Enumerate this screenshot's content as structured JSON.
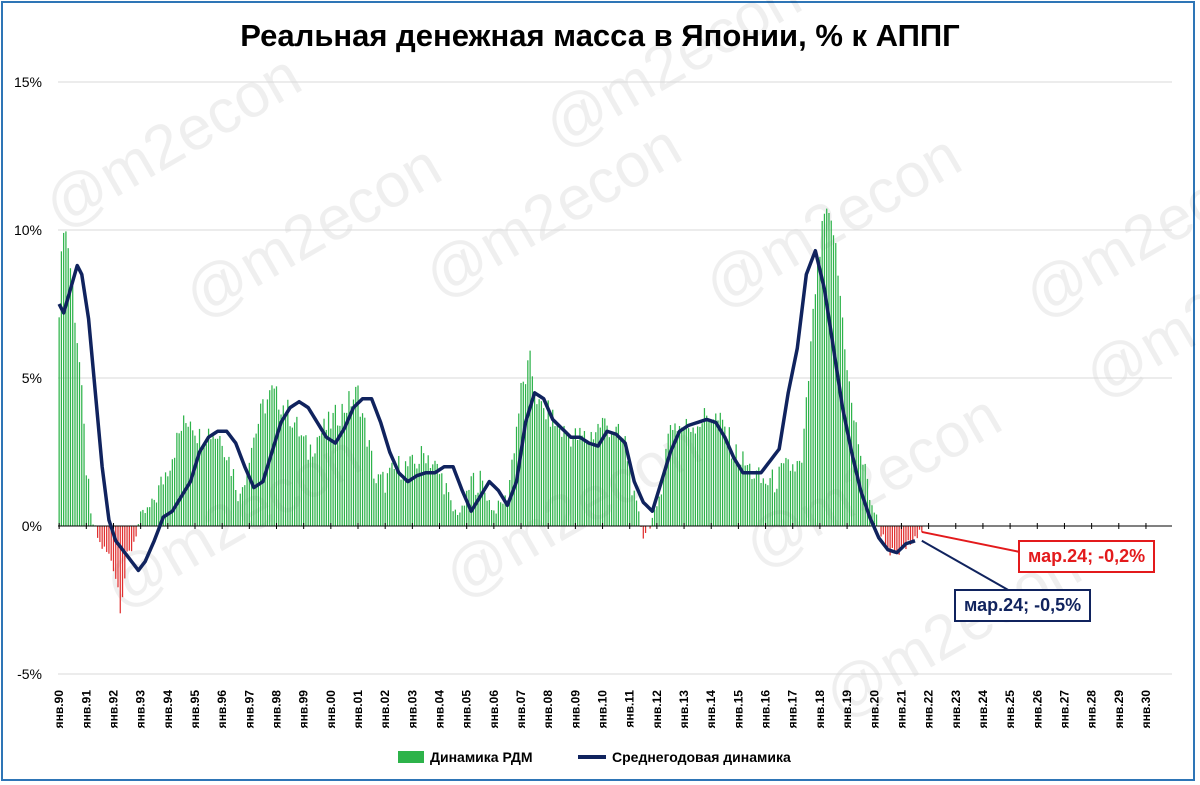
{
  "title": "Реальная денежная масса в Японии, % к АППГ",
  "watermark": "@m2econ",
  "colors": {
    "positive_bar": "#2db34a",
    "negative_bar": "#e03030",
    "line": "#10235e",
    "grid": "#d9d9d9",
    "frame": "#2e75b6",
    "callout_red": "#e31a1c",
    "callout_blue": "#10235e"
  },
  "legend": {
    "bar_label": "Динамика РДМ",
    "line_label": "Среднегодовая динамика"
  },
  "callouts": {
    "red": "мар.24; -0,2%",
    "blue": "мар.24; -0,5%"
  },
  "chart_data": {
    "type": "bar",
    "title": "Реальная денежная масса в Японии, % к АППГ",
    "y_ticks": [
      "15%",
      "10%",
      "5%",
      "0%",
      "-5%"
    ],
    "ylim": [
      -5,
      15
    ],
    "x_ticks": [
      "янв.90",
      "янв.91",
      "янв.92",
      "янв.93",
      "янв.94",
      "янв.95",
      "янв.96",
      "янв.97",
      "янв.98",
      "янв.99",
      "янв.00",
      "янв.01",
      "янв.02",
      "янв.03",
      "янв.04",
      "янв.05",
      "янв.06",
      "янв.07",
      "янв.08",
      "янв.09",
      "янв.10",
      "янв.11",
      "янв.12",
      "янв.13",
      "янв.14",
      "янв.15",
      "янв.16",
      "янв.17",
      "янв.18",
      "янв.19",
      "янв.20",
      "янв.21",
      "янв.22",
      "янв.23",
      "янв.24",
      "янв.25",
      "янв.26",
      "янв.27",
      "янв.28",
      "янв.29",
      "янв.30"
    ],
    "grid": true,
    "legend_position": "bottom",
    "x_start": "янв.90",
    "series": [
      {
        "name": "Динамика РДМ",
        "kind": "bar",
        "anchors": [
          [
            0,
            7.5
          ],
          [
            2,
            10.3
          ],
          [
            4,
            9.5
          ],
          [
            6,
            8.0
          ],
          [
            9,
            5.5
          ],
          [
            12,
            2.0
          ],
          [
            14,
            0.3
          ],
          [
            18,
            -0.6
          ],
          [
            24,
            -1.2
          ],
          [
            27,
            -2.5
          ],
          [
            30,
            -1.3
          ],
          [
            33,
            -0.5
          ],
          [
            36,
            0.3
          ],
          [
            40,
            0.6
          ],
          [
            44,
            1.2
          ],
          [
            48,
            2.0
          ],
          [
            54,
            3.3
          ],
          [
            58,
            3.7
          ],
          [
            62,
            3.0
          ],
          [
            66,
            3.2
          ],
          [
            72,
            3.0
          ],
          [
            76,
            2.0
          ],
          [
            80,
            1.0
          ],
          [
            84,
            2.5
          ],
          [
            90,
            4.0
          ],
          [
            94,
            4.5
          ],
          [
            100,
            4.0
          ],
          [
            104,
            3.5
          ],
          [
            110,
            2.5
          ],
          [
            114,
            3.0
          ],
          [
            120,
            3.5
          ],
          [
            126,
            4.0
          ],
          [
            132,
            4.5
          ],
          [
            136,
            3.0
          ],
          [
            140,
            1.5
          ],
          [
            144,
            1.5
          ],
          [
            150,
            2.0
          ],
          [
            156,
            2.0
          ],
          [
            162,
            2.5
          ],
          [
            166,
            2.0
          ],
          [
            170,
            1.5
          ],
          [
            174,
            0.5
          ],
          [
            178,
            0.5
          ],
          [
            182,
            1.5
          ],
          [
            186,
            1.5
          ],
          [
            192,
            0.5
          ],
          [
            198,
            1.0
          ],
          [
            204,
            4.5
          ],
          [
            208,
            5.5
          ],
          [
            212,
            4.0
          ],
          [
            216,
            3.8
          ],
          [
            222,
            3.2
          ],
          [
            228,
            3.0
          ],
          [
            234,
            3.0
          ],
          [
            240,
            3.5
          ],
          [
            244,
            3.3
          ],
          [
            250,
            2.8
          ],
          [
            254,
            1.0
          ],
          [
            258,
            -0.3
          ],
          [
            264,
            0.5
          ],
          [
            270,
            3.5
          ],
          [
            276,
            3.3
          ],
          [
            282,
            3.5
          ],
          [
            288,
            3.8
          ],
          [
            294,
            3.3
          ],
          [
            298,
            2.5
          ],
          [
            304,
            2.0
          ],
          [
            310,
            1.5
          ],
          [
            316,
            1.5
          ],
          [
            322,
            2.0
          ],
          [
            328,
            2.0
          ],
          [
            334,
            8.0
          ],
          [
            338,
            10.5
          ],
          [
            342,
            10.0
          ],
          [
            346,
            7.0
          ],
          [
            350,
            4.0
          ],
          [
            354,
            2.5
          ],
          [
            358,
            1.0
          ],
          [
            362,
            0.0
          ],
          [
            366,
            -0.8
          ],
          [
            370,
            -1.0
          ],
          [
            374,
            -0.7
          ],
          [
            378,
            -0.5
          ],
          [
            381,
            -0.2
          ]
        ]
      },
      {
        "name": "Среднегодовая динамика",
        "kind": "line",
        "anchors": [
          [
            0,
            7.5
          ],
          [
            2,
            7.2
          ],
          [
            5,
            8.0
          ],
          [
            8,
            8.8
          ],
          [
            10,
            8.5
          ],
          [
            13,
            7.0
          ],
          [
            16,
            4.5
          ],
          [
            19,
            2.0
          ],
          [
            22,
            0.2
          ],
          [
            25,
            -0.5
          ],
          [
            30,
            -1.0
          ],
          [
            35,
            -1.5
          ],
          [
            38,
            -1.2
          ],
          [
            42,
            -0.5
          ],
          [
            46,
            0.3
          ],
          [
            50,
            0.5
          ],
          [
            54,
            1.0
          ],
          [
            58,
            1.5
          ],
          [
            62,
            2.5
          ],
          [
            66,
            3.0
          ],
          [
            70,
            3.2
          ],
          [
            74,
            3.2
          ],
          [
            78,
            2.8
          ],
          [
            82,
            2.0
          ],
          [
            86,
            1.3
          ],
          [
            90,
            1.5
          ],
          [
            94,
            2.5
          ],
          [
            98,
            3.5
          ],
          [
            102,
            4.0
          ],
          [
            106,
            4.2
          ],
          [
            110,
            4.0
          ],
          [
            114,
            3.5
          ],
          [
            118,
            3.0
          ],
          [
            122,
            2.8
          ],
          [
            126,
            3.3
          ],
          [
            130,
            4.0
          ],
          [
            134,
            4.3
          ],
          [
            138,
            4.3
          ],
          [
            142,
            3.5
          ],
          [
            146,
            2.5
          ],
          [
            150,
            1.8
          ],
          [
            154,
            1.5
          ],
          [
            158,
            1.7
          ],
          [
            162,
            1.8
          ],
          [
            166,
            1.8
          ],
          [
            170,
            2.0
          ],
          [
            174,
            2.0
          ],
          [
            178,
            1.2
          ],
          [
            182,
            0.5
          ],
          [
            186,
            1.0
          ],
          [
            190,
            1.5
          ],
          [
            194,
            1.2
          ],
          [
            198,
            0.7
          ],
          [
            202,
            1.5
          ],
          [
            206,
            3.5
          ],
          [
            210,
            4.5
          ],
          [
            214,
            4.3
          ],
          [
            218,
            3.6
          ],
          [
            222,
            3.3
          ],
          [
            226,
            3.0
          ],
          [
            230,
            3.0
          ],
          [
            234,
            2.8
          ],
          [
            238,
            2.7
          ],
          [
            242,
            3.2
          ],
          [
            246,
            3.1
          ],
          [
            250,
            2.8
          ],
          [
            254,
            1.5
          ],
          [
            258,
            0.8
          ],
          [
            262,
            0.5
          ],
          [
            266,
            1.5
          ],
          [
            270,
            2.5
          ],
          [
            274,
            3.2
          ],
          [
            278,
            3.4
          ],
          [
            282,
            3.5
          ],
          [
            286,
            3.6
          ],
          [
            290,
            3.5
          ],
          [
            294,
            3.0
          ],
          [
            298,
            2.3
          ],
          [
            302,
            1.8
          ],
          [
            306,
            1.8
          ],
          [
            310,
            1.8
          ],
          [
            314,
            2.2
          ],
          [
            318,
            2.6
          ],
          [
            322,
            4.5
          ],
          [
            326,
            6.0
          ],
          [
            330,
            8.5
          ],
          [
            334,
            9.3
          ],
          [
            338,
            8.0
          ],
          [
            342,
            6.0
          ],
          [
            346,
            4.0
          ],
          [
            350,
            2.5
          ],
          [
            354,
            1.2
          ],
          [
            358,
            0.3
          ],
          [
            362,
            -0.4
          ],
          [
            366,
            -0.8
          ],
          [
            370,
            -0.9
          ],
          [
            374,
            -0.6
          ],
          [
            378,
            -0.5
          ]
        ]
      }
    ]
  }
}
